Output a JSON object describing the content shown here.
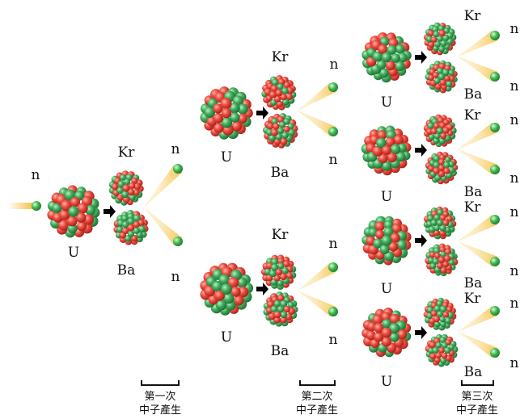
{
  "labels": {
    "uranium": "U",
    "krypton": "Kr",
    "barium": "Ba",
    "neutron": "n"
  },
  "stages": [
    {
      "line1": "第一次",
      "line2": "中子產生"
    },
    {
      "line1": "第二次",
      "line2": "中子產生"
    },
    {
      "line1": "第三次",
      "line2": "中子產生"
    }
  ],
  "colors": {
    "proton": "#e8453c",
    "neutron_particle": "#3fa85a",
    "neutron_trail": "#f5b82e",
    "arrow": "#000000"
  }
}
